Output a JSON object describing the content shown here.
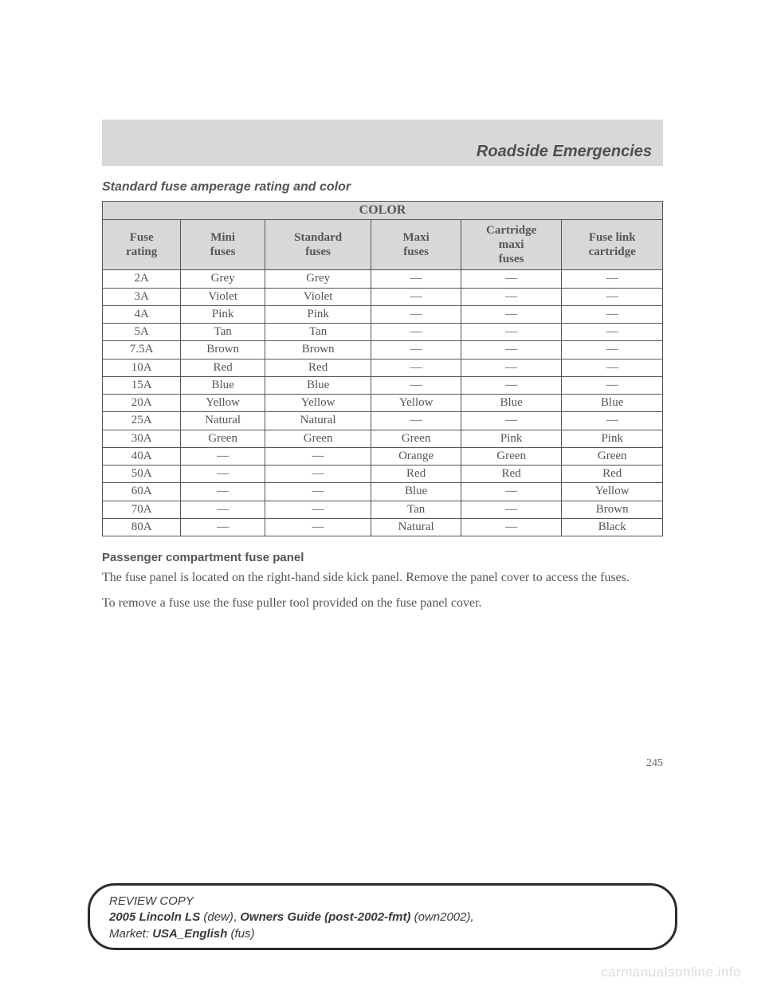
{
  "colors": {
    "page_bg": "#ffffff",
    "header_bg": "#d8d8d8",
    "text": "#4a4a4a",
    "muted_text": "#555555",
    "border": "#555555",
    "footer_border": "#2c2c2c",
    "watermark": "#dcdcdc"
  },
  "header": {
    "title": "Roadside Emergencies"
  },
  "subheading": "Standard fuse amperage rating and color",
  "table": {
    "top_header": "COLOR",
    "columns": [
      "Fuse rating",
      "Mini fuses",
      "Standard fuses",
      "Maxi fuses",
      "Cartridge maxi fuses",
      "Fuse link cartridge"
    ],
    "column_widths_pct": [
      14,
      15,
      19,
      16,
      18,
      18
    ],
    "rows": [
      [
        "2A",
        "Grey",
        "Grey",
        "—",
        "—",
        "—"
      ],
      [
        "3A",
        "Violet",
        "Violet",
        "—",
        "—",
        "—"
      ],
      [
        "4A",
        "Pink",
        "Pink",
        "—",
        "—",
        "—"
      ],
      [
        "5A",
        "Tan",
        "Tan",
        "—",
        "—",
        "—"
      ],
      [
        "7.5A",
        "Brown",
        "Brown",
        "—",
        "—",
        "—"
      ],
      [
        "10A",
        "Red",
        "Red",
        "—",
        "—",
        "—"
      ],
      [
        "15A",
        "Blue",
        "Blue",
        "—",
        "—",
        "—"
      ],
      [
        "20A",
        "Yellow",
        "Yellow",
        "Yellow",
        "Blue",
        "Blue"
      ],
      [
        "25A",
        "Natural",
        "Natural",
        "—",
        "—",
        "—"
      ],
      [
        "30A",
        "Green",
        "Green",
        "Green",
        "Pink",
        "Pink"
      ],
      [
        "40A",
        "—",
        "—",
        "Orange",
        "Green",
        "Green"
      ],
      [
        "50A",
        "—",
        "—",
        "Red",
        "Red",
        "Red"
      ],
      [
        "60A",
        "—",
        "—",
        "Blue",
        "—",
        "Yellow"
      ],
      [
        "70A",
        "—",
        "—",
        "Tan",
        "—",
        "Brown"
      ],
      [
        "80A",
        "—",
        "—",
        "Natural",
        "—",
        "Black"
      ]
    ]
  },
  "section": {
    "title": "Passenger compartment fuse panel",
    "p1": "The fuse panel is located on the right-hand side kick panel. Remove the panel cover to access the fuses.",
    "p2": "To remove a fuse use the fuse puller tool provided on the fuse panel cover."
  },
  "page_number": "245",
  "footer": {
    "l1": "REVIEW COPY",
    "l2a": "2005 Lincoln LS ",
    "l2b": "(dew)",
    "l2c": ", ",
    "l2d": "Owners Guide (post-2002-fmt) ",
    "l2e": "(own2002),",
    "l3a": "Market: ",
    "l3b": "USA_English ",
    "l3c": "(fus)"
  },
  "watermark": "carmanualsonline.info"
}
